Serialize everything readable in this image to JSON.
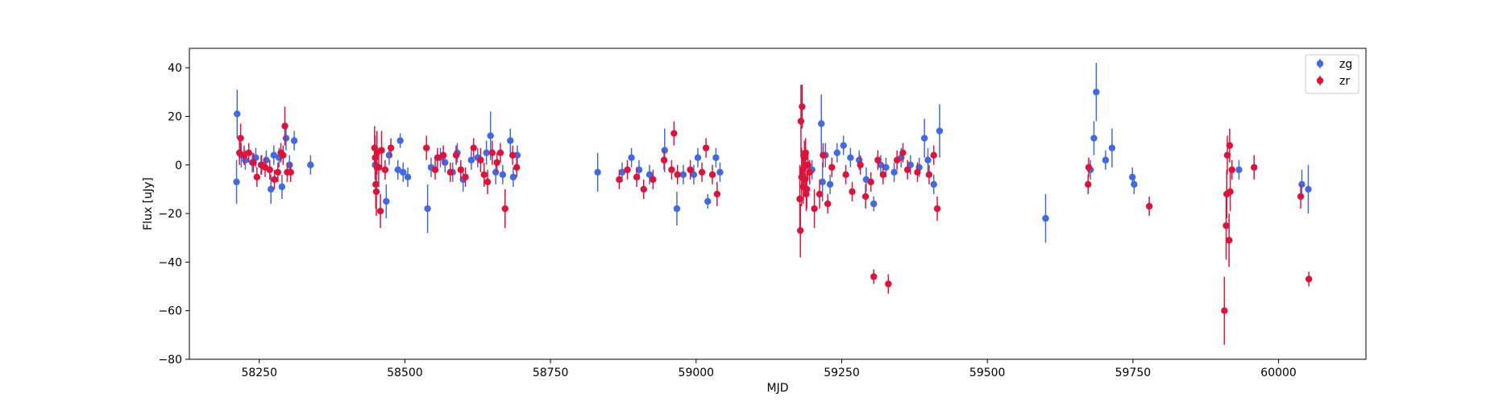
{
  "chart_data": {
    "type": "scatter",
    "title": "",
    "xlabel": "MJD",
    "ylabel": "Flux [uJy]",
    "xlim": [
      58130,
      60150
    ],
    "ylim": [
      -80,
      48
    ],
    "xticks": [
      58250,
      58500,
      58750,
      59000,
      59250,
      59500,
      59750,
      60000
    ],
    "yticks": [
      -80,
      -60,
      -40,
      -20,
      0,
      20,
      40
    ],
    "grid": false,
    "legend_position": "top-right",
    "series": [
      {
        "name": "zg",
        "color": "#4169e1",
        "points": [
          [
            58211,
            -7,
            9
          ],
          [
            58212,
            21,
            10
          ],
          [
            58219,
            4,
            5
          ],
          [
            58226,
            2,
            4
          ],
          [
            58238,
            1,
            4
          ],
          [
            58244,
            3,
            4
          ],
          [
            58253,
            0,
            4
          ],
          [
            58262,
            2,
            4
          ],
          [
            58270,
            -10,
            6
          ],
          [
            58275,
            4,
            4
          ],
          [
            58284,
            3,
            4
          ],
          [
            58289,
            -9,
            5
          ],
          [
            58296,
            11,
            5
          ],
          [
            58302,
            0,
            4
          ],
          [
            58310,
            10,
            4
          ],
          [
            58338,
            0,
            4
          ],
          [
            58449,
            0,
            6
          ],
          [
            58468,
            -15,
            7
          ],
          [
            58473,
            4,
            4
          ],
          [
            58488,
            -2,
            4
          ],
          [
            58492,
            10,
            3
          ],
          [
            58497,
            -3,
            4
          ],
          [
            58505,
            -5,
            4
          ],
          [
            58539,
            -18,
            10
          ],
          [
            58545,
            -1,
            4
          ],
          [
            58561,
            3,
            4
          ],
          [
            58569,
            1,
            4
          ],
          [
            58582,
            -3,
            4
          ],
          [
            58590,
            5,
            4
          ],
          [
            58600,
            -6,
            5
          ],
          [
            58614,
            2,
            4
          ],
          [
            58625,
            3,
            4
          ],
          [
            58640,
            5,
            5
          ],
          [
            58647,
            12,
            10
          ],
          [
            58656,
            -3,
            5
          ],
          [
            58668,
            -4,
            4
          ],
          [
            58681,
            10,
            5
          ],
          [
            58686,
            -5,
            4
          ],
          [
            58693,
            4,
            4
          ],
          [
            58831,
            -3,
            8
          ],
          [
            58873,
            -3,
            4
          ],
          [
            58889,
            3,
            4
          ],
          [
            58902,
            -2,
            4
          ],
          [
            58920,
            -4,
            4
          ],
          [
            58946,
            6,
            9
          ],
          [
            58967,
            -18,
            7
          ],
          [
            58978,
            -4,
            4
          ],
          [
            58996,
            -4,
            4
          ],
          [
            59003,
            3,
            4
          ],
          [
            59020,
            -15,
            3
          ],
          [
            59034,
            3,
            4
          ],
          [
            59041,
            -3,
            4
          ],
          [
            59183,
            -4,
            6
          ],
          [
            59199,
            -2,
            4
          ],
          [
            59215,
            17,
            12
          ],
          [
            59217,
            -7,
            8
          ],
          [
            59222,
            4,
            5
          ],
          [
            59230,
            -8,
            4
          ],
          [
            59242,
            5,
            4
          ],
          [
            59253,
            8,
            4
          ],
          [
            59265,
            3,
            4
          ],
          [
            59280,
            2,
            4
          ],
          [
            59292,
            -6,
            5
          ],
          [
            59305,
            -16,
            3
          ],
          [
            59317,
            0,
            4
          ],
          [
            59326,
            -1,
            4
          ],
          [
            59340,
            -3,
            4
          ],
          [
            59352,
            3,
            4
          ],
          [
            59368,
            0,
            4
          ],
          [
            59383,
            -1,
            4
          ],
          [
            59392,
            11,
            8
          ],
          [
            59398,
            2,
            5
          ],
          [
            59408,
            -8,
            4
          ],
          [
            59418,
            14,
            11
          ],
          [
            59600,
            -22,
            10
          ],
          [
            59677,
            -2,
            4
          ],
          [
            59683,
            11,
            7
          ],
          [
            59687,
            30,
            12
          ],
          [
            59703,
            2,
            4
          ],
          [
            59714,
            7,
            8
          ],
          [
            59749,
            -5,
            4
          ],
          [
            59752,
            -8,
            4
          ],
          [
            59932,
            -2,
            4
          ],
          [
            60040,
            -8,
            6
          ],
          [
            60051,
            -10,
            10
          ]
        ]
      },
      {
        "name": "zr",
        "color": "#dc143c",
        "points": [
          [
            58216,
            5,
            5
          ],
          [
            58218,
            11,
            6
          ],
          [
            58224,
            4,
            4
          ],
          [
            58232,
            5,
            4
          ],
          [
            58240,
            1,
            4
          ],
          [
            58246,
            -5,
            4
          ],
          [
            58254,
            0,
            4
          ],
          [
            58260,
            -1,
            4
          ],
          [
            58268,
            -2,
            4
          ],
          [
            58276,
            -6,
            4
          ],
          [
            58282,
            -3,
            4
          ],
          [
            58287,
            5,
            4
          ],
          [
            58291,
            4,
            4
          ],
          [
            58294,
            16,
            8
          ],
          [
            58298,
            -3,
            4
          ],
          [
            58304,
            -3,
            4
          ],
          [
            58448,
            7,
            9
          ],
          [
            58449,
            3,
            9
          ],
          [
            58450,
            -8,
            10
          ],
          [
            58451,
            -11,
            10
          ],
          [
            58452,
            5,
            9
          ],
          [
            58455,
            -1,
            8
          ],
          [
            58458,
            -19,
            7
          ],
          [
            58460,
            6,
            8
          ],
          [
            58466,
            -2,
            4
          ],
          [
            58476,
            7,
            4
          ],
          [
            58537,
            7,
            5
          ],
          [
            58552,
            -2,
            4
          ],
          [
            58556,
            3,
            4
          ],
          [
            58566,
            4,
            4
          ],
          [
            58578,
            -3,
            4
          ],
          [
            58588,
            4,
            4
          ],
          [
            58596,
            -2,
            4
          ],
          [
            58604,
            -5,
            4
          ],
          [
            58618,
            7,
            4
          ],
          [
            58630,
            2,
            5
          ],
          [
            58636,
            -4,
            5
          ],
          [
            58642,
            -7,
            5
          ],
          [
            58650,
            5,
            5
          ],
          [
            58658,
            1,
            4
          ],
          [
            58664,
            5,
            4
          ],
          [
            58672,
            -18,
            8
          ],
          [
            58685,
            4,
            4
          ],
          [
            58692,
            -1,
            4
          ],
          [
            58868,
            -6,
            4
          ],
          [
            58882,
            -2,
            4
          ],
          [
            58898,
            -5,
            4
          ],
          [
            58910,
            -10,
            4
          ],
          [
            58926,
            -6,
            4
          ],
          [
            58945,
            2,
            4
          ],
          [
            58958,
            -2,
            4
          ],
          [
            58962,
            13,
            5
          ],
          [
            58968,
            -4,
            4
          ],
          [
            58990,
            -2,
            4
          ],
          [
            59010,
            -3,
            4
          ],
          [
            59017,
            7,
            4
          ],
          [
            59028,
            -4,
            4
          ],
          [
            59036,
            -12,
            5
          ],
          [
            59178,
            -14,
            14
          ],
          [
            59179,
            -27,
            11
          ],
          [
            59180,
            18,
            15
          ],
          [
            59181,
            -5,
            12
          ],
          [
            59182,
            24,
            9
          ],
          [
            59183,
            -2,
            8
          ],
          [
            59184,
            -9,
            7
          ],
          [
            59185,
            -1,
            7
          ],
          [
            59186,
            3,
            7
          ],
          [
            59187,
            -6,
            7
          ],
          [
            59188,
            5,
            6
          ],
          [
            59189,
            -12,
            7
          ],
          [
            59190,
            -10,
            8
          ],
          [
            59192,
            0,
            6
          ],
          [
            59195,
            -3,
            5
          ],
          [
            59203,
            -18,
            8
          ],
          [
            59212,
            -12,
            6
          ],
          [
            59218,
            4,
            5
          ],
          [
            59226,
            -16,
            4
          ],
          [
            59233,
            -1,
            4
          ],
          [
            59257,
            -4,
            4
          ],
          [
            59268,
            -11,
            4
          ],
          [
            59282,
            0,
            4
          ],
          [
            59291,
            -13,
            5
          ],
          [
            59300,
            -7,
            4
          ],
          [
            59305,
            -46,
            3
          ],
          [
            59312,
            2,
            4
          ],
          [
            59321,
            -4,
            4
          ],
          [
            59330,
            -49,
            4
          ],
          [
            59345,
            2,
            4
          ],
          [
            59355,
            5,
            4
          ],
          [
            59363,
            -2,
            4
          ],
          [
            59380,
            -3,
            4
          ],
          [
            59400,
            -4,
            4
          ],
          [
            59408,
            4,
            4
          ],
          [
            59414,
            -18,
            5
          ],
          [
            59673,
            -8,
            4
          ],
          [
            59674,
            -1,
            4
          ],
          [
            59778,
            -17,
            4
          ],
          [
            59907,
            -60,
            14
          ],
          [
            59910,
            -25,
            14
          ],
          [
            59911,
            -12,
            10
          ],
          [
            59912,
            4,
            8
          ],
          [
            59915,
            -31,
            11
          ],
          [
            59916,
            8,
            7
          ],
          [
            59917,
            -11,
            8
          ],
          [
            59920,
            -2,
            4
          ],
          [
            59958,
            -1,
            5
          ],
          [
            60038,
            -13,
            5
          ],
          [
            60052,
            -47,
            3
          ]
        ]
      }
    ]
  }
}
